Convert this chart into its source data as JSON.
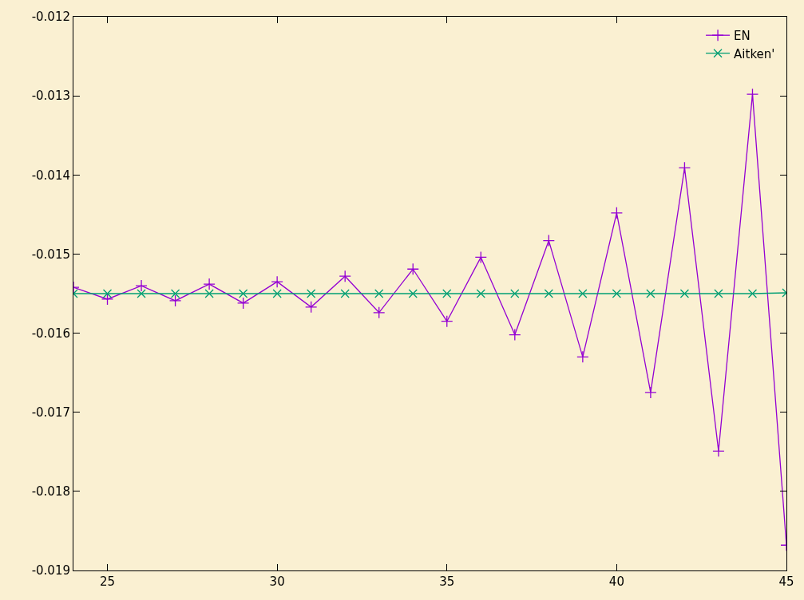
{
  "chart_data": {
    "type": "line",
    "x": [
      24,
      25,
      26,
      27,
      28,
      29,
      30,
      31,
      32,
      33,
      34,
      35,
      36,
      37,
      38,
      39,
      40,
      41,
      42,
      43,
      44,
      45
    ],
    "series": [
      {
        "name": "EN",
        "color": "#9400d3",
        "marker": "cross",
        "values": [
          -0.01542,
          -0.01557,
          -0.0154,
          -0.01559,
          -0.01538,
          -0.01562,
          -0.01535,
          -0.01567,
          -0.01528,
          -0.01574,
          -0.01519,
          -0.01585,
          -0.01504,
          -0.01602,
          -0.01483,
          -0.0163,
          -0.01448,
          -0.01675,
          -0.01391,
          -0.01749,
          -0.01298,
          -0.01868
        ]
      },
      {
        "name": "Aitken'",
        "color": "#009e73",
        "marker": "x",
        "values": [
          -0.0155,
          -0.0155,
          -0.0155,
          -0.0155,
          -0.0155,
          -0.0155,
          -0.0155,
          -0.0155,
          -0.0155,
          -0.0155,
          -0.0155,
          -0.0155,
          -0.0155,
          -0.0155,
          -0.0155,
          -0.0155,
          -0.0155,
          -0.0155,
          -0.0155,
          -0.0155,
          -0.0155,
          -0.01549
        ]
      }
    ],
    "xlim": [
      24,
      45
    ],
    "xticks": [
      25,
      30,
      35,
      40,
      45
    ],
    "ylim": [
      -0.019,
      -0.012
    ],
    "yticks": [
      -0.019,
      -0.018,
      -0.017,
      -0.016,
      -0.015,
      -0.014,
      -0.013,
      -0.012
    ],
    "grid": false,
    "legend": "top right",
    "line_style": "solid"
  }
}
